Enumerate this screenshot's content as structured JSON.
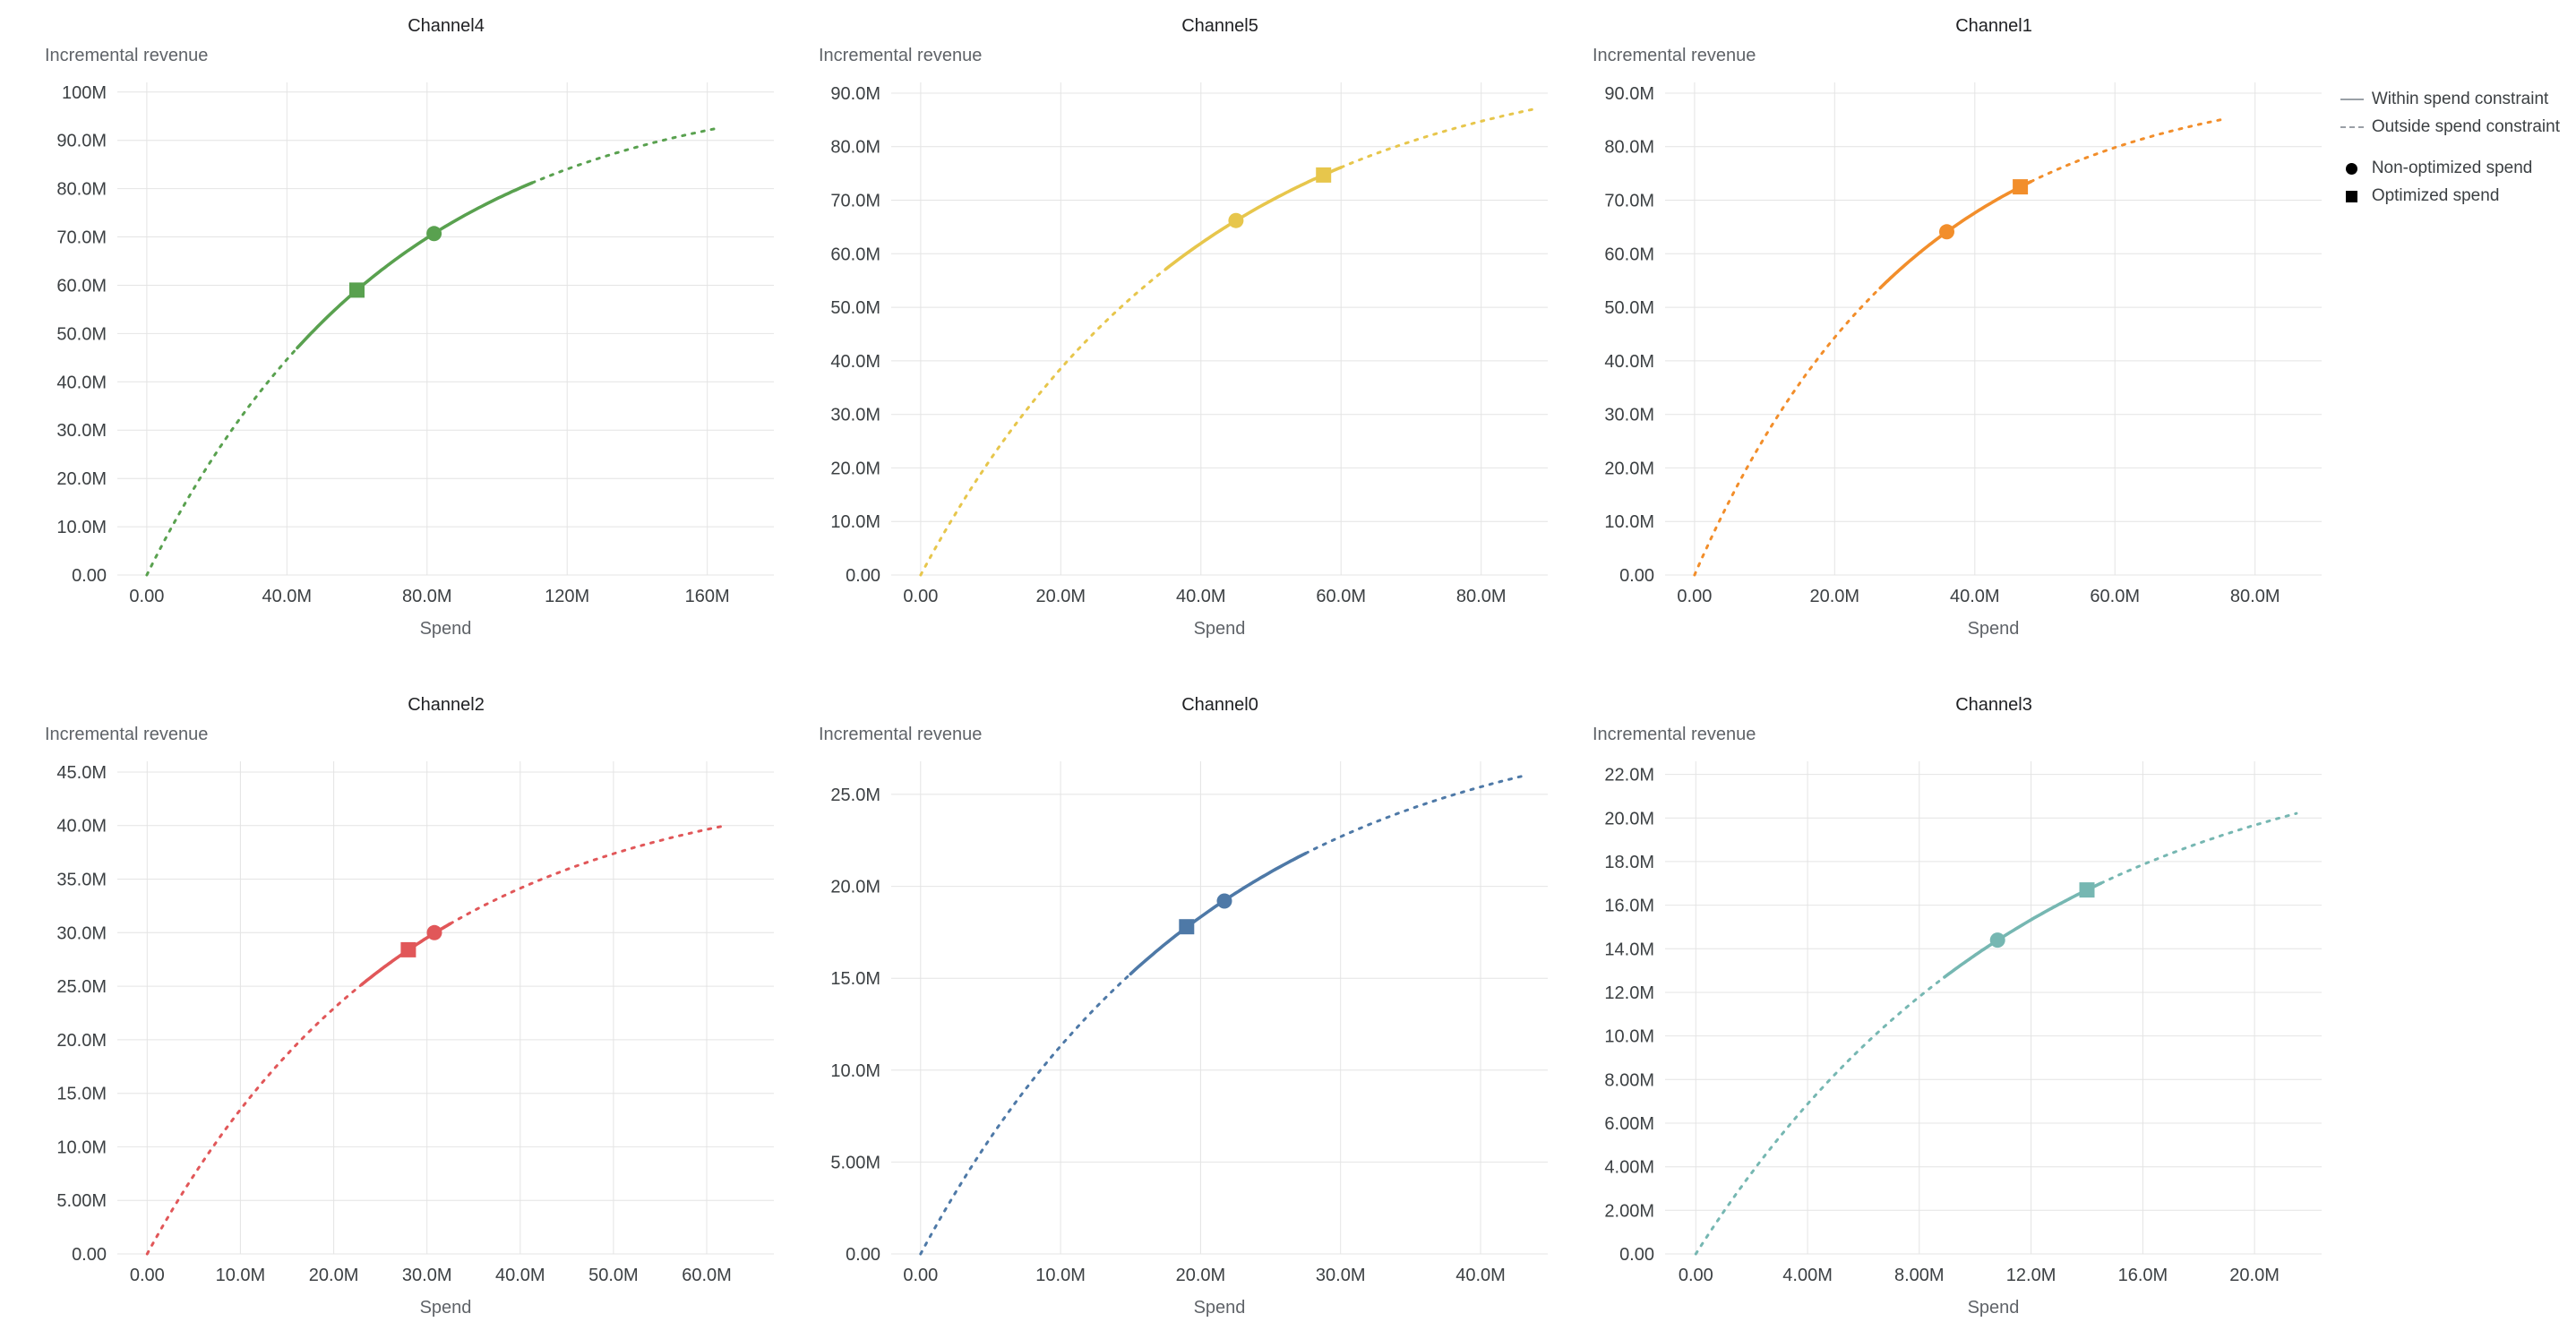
{
  "axis": {
    "x_title": "Spend",
    "y_title": "Incremental revenue"
  },
  "legend": {
    "within_label": "Within spend constraint",
    "outside_label": "Outside spend constraint",
    "non_optimized_label": "Non-optimized spend",
    "optimized_label": "Optimized spend"
  },
  "chart_data": [
    {
      "type": "line",
      "title": "Channel4",
      "xlabel": "Spend",
      "ylabel": "Incremental revenue",
      "color": "#59a14f",
      "value_unit": "M",
      "curve": {
        "model": "saturating_exponential",
        "formula": "y = a*(1-exp(-x/b))",
        "a": 102.5,
        "b": 70,
        "x_min": 0,
        "x_max": 163
      },
      "solid_range": [
        43,
        110
      ],
      "x_ticks": {
        "values": [
          0,
          40,
          80,
          120,
          160
        ],
        "labels": [
          "0.00",
          "40.0M",
          "80.0M",
          "120M",
          "160M"
        ]
      },
      "y_ticks": {
        "values": [
          0,
          10,
          20,
          30,
          40,
          50,
          60,
          70,
          80,
          90,
          100
        ],
        "labels": [
          "0.00",
          "10.0M",
          "20.0M",
          "30.0M",
          "40.0M",
          "50.0M",
          "60.0M",
          "70.0M",
          "80.0M",
          "90.0M",
          "100M"
        ]
      },
      "xlim": [
        -8.4,
        179
      ],
      "ylim": [
        0,
        102
      ],
      "markers": {
        "non_optimized": {
          "shape": "circle",
          "x": 82,
          "y": 70.7
        },
        "optimized": {
          "shape": "square",
          "x": 60,
          "y": 59.0
        }
      }
    },
    {
      "type": "line",
      "title": "Channel5",
      "xlabel": "Spend",
      "ylabel": "Incremental revenue",
      "color": "#e7c64c",
      "value_unit": "M",
      "curve": {
        "model": "saturating_exponential",
        "formula": "y = a*(1-exp(-x/b))",
        "a": 98,
        "b": 40,
        "x_min": 0,
        "x_max": 88
      },
      "solid_range": [
        35,
        60
      ],
      "x_ticks": {
        "values": [
          0,
          20,
          40,
          60,
          80
        ],
        "labels": [
          "0.00",
          "20.0M",
          "40.0M",
          "60.0M",
          "80.0M"
        ]
      },
      "y_ticks": {
        "values": [
          0,
          10,
          20,
          30,
          40,
          50,
          60,
          70,
          80,
          90
        ],
        "labels": [
          "0.00",
          "10.0M",
          "20.0M",
          "30.0M",
          "40.0M",
          "50.0M",
          "60.0M",
          "70.0M",
          "80.0M",
          "90.0M"
        ]
      },
      "xlim": [
        -4.2,
        89.5
      ],
      "ylim": [
        0,
        92
      ],
      "markers": {
        "non_optimized": {
          "shape": "circle",
          "x": 45,
          "y": 66.2
        },
        "optimized": {
          "shape": "square",
          "x": 57.5,
          "y": 74.7
        }
      }
    },
    {
      "type": "line",
      "title": "Channel1",
      "xlabel": "Spend",
      "ylabel": "Incremental revenue",
      "color": "#f28e2b",
      "value_unit": "M",
      "curve": {
        "model": "saturating_exponential",
        "formula": "y = a*(1-exp(-x/b))",
        "a": 93.3,
        "b": 31,
        "x_min": 0,
        "x_max": 76
      },
      "solid_range": [
        26.5,
        48
      ],
      "x_ticks": {
        "values": [
          0,
          20,
          40,
          60,
          80
        ],
        "labels": [
          "0.00",
          "20.0M",
          "40.0M",
          "60.0M",
          "80.0M"
        ]
      },
      "y_ticks": {
        "values": [
          0,
          10,
          20,
          30,
          40,
          50,
          60,
          70,
          80,
          90
        ],
        "labels": [
          "0.00",
          "10.0M",
          "20.0M",
          "30.0M",
          "40.0M",
          "50.0M",
          "60.0M",
          "70.0M",
          "80.0M",
          "90.0M"
        ]
      },
      "xlim": [
        -4.2,
        89.5
      ],
      "ylim": [
        0,
        92
      ],
      "markers": {
        "non_optimized": {
          "shape": "circle",
          "x": 36,
          "y": 64.1
        },
        "optimized": {
          "shape": "square",
          "x": 46.5,
          "y": 72.5
        }
      }
    },
    {
      "type": "line",
      "title": "Channel2",
      "xlabel": "Spend",
      "ylabel": "Incremental revenue",
      "color": "#e15759",
      "value_unit": "M",
      "curve": {
        "model": "saturating_exponential",
        "formula": "y = a*(1-exp(-x/b))",
        "a": 44.9,
        "b": 28,
        "x_min": 0,
        "x_max": 62
      },
      "solid_range": [
        23,
        32.5
      ],
      "x_ticks": {
        "values": [
          0,
          10,
          20,
          30,
          40,
          50,
          60
        ],
        "labels": [
          "0.00",
          "10.0M",
          "20.0M",
          "30.0M",
          "40.0M",
          "50.0M",
          "60.0M"
        ]
      },
      "y_ticks": {
        "values": [
          0,
          5,
          10,
          15,
          20,
          25,
          30,
          35,
          40,
          45
        ],
        "labels": [
          "0.00",
          "5.00M",
          "10.0M",
          "15.0M",
          "20.0M",
          "25.0M",
          "30.0M",
          "35.0M",
          "40.0M",
          "45.0M"
        ]
      },
      "xlim": [
        -3.2,
        67.2
      ],
      "ylim": [
        0,
        46
      ],
      "markers": {
        "non_optimized": {
          "shape": "circle",
          "x": 30.8,
          "y": 30.0
        },
        "optimized": {
          "shape": "square",
          "x": 28,
          "y": 28.4
        }
      }
    },
    {
      "type": "line",
      "title": "Channel0",
      "xlabel": "Spend",
      "ylabel": "Incremental revenue",
      "color": "#4e79a7",
      "value_unit": "M",
      "curve": {
        "model": "saturating_exponential",
        "formula": "y = a*(1-exp(-x/b))",
        "a": 29.85,
        "b": 21,
        "x_min": 0,
        "x_max": 43
      },
      "solid_range": [
        15,
        27.5
      ],
      "x_ticks": {
        "values": [
          0,
          10,
          20,
          30,
          40
        ],
        "labels": [
          "0.00",
          "10.0M",
          "20.0M",
          "30.0M",
          "40.0M"
        ]
      },
      "y_ticks": {
        "values": [
          0,
          5,
          10,
          15,
          20,
          25
        ],
        "labels": [
          "0.00",
          "5.00M",
          "10.0M",
          "15.0M",
          "20.0M",
          "25.0M"
        ]
      },
      "xlim": [
        -2.1,
        44.8
      ],
      "ylim": [
        0,
        26.8
      ],
      "markers": {
        "non_optimized": {
          "shape": "circle",
          "x": 21.7,
          "y": 19.2
        },
        "optimized": {
          "shape": "square",
          "x": 19,
          "y": 17.8
        }
      }
    },
    {
      "type": "line",
      "title": "Channel3",
      "xlabel": "Spend",
      "ylabel": "Incremental revenue",
      "color": "#76b7b2",
      "value_unit": "M",
      "curve": {
        "model": "saturating_exponential",
        "formula": "y = a*(1-exp(-x/b))",
        "a": 24.25,
        "b": 12,
        "x_min": 0,
        "x_max": 21.5
      },
      "solid_range": [
        8.9,
        14.5
      ],
      "x_ticks": {
        "values": [
          0,
          4,
          8,
          12,
          16,
          20
        ],
        "labels": [
          "0.00",
          "4.00M",
          "8.00M",
          "12.0M",
          "16.0M",
          "20.0M"
        ]
      },
      "y_ticks": {
        "values": [
          0,
          2,
          4,
          6,
          8,
          10,
          12,
          14,
          16,
          18,
          20,
          22
        ],
        "labels": [
          "0.00",
          "2.00M",
          "4.00M",
          "6.00M",
          "8.00M",
          "10.0M",
          "12.0M",
          "14.0M",
          "16.0M",
          "18.0M",
          "20.0M",
          "22.0M"
        ]
      },
      "xlim": [
        -1.1,
        22.4
      ],
      "ylim": [
        0,
        22.6
      ],
      "markers": {
        "non_optimized": {
          "shape": "circle",
          "x": 10.8,
          "y": 14.4
        },
        "optimized": {
          "shape": "square",
          "x": 14,
          "y": 16.7
        }
      }
    }
  ]
}
